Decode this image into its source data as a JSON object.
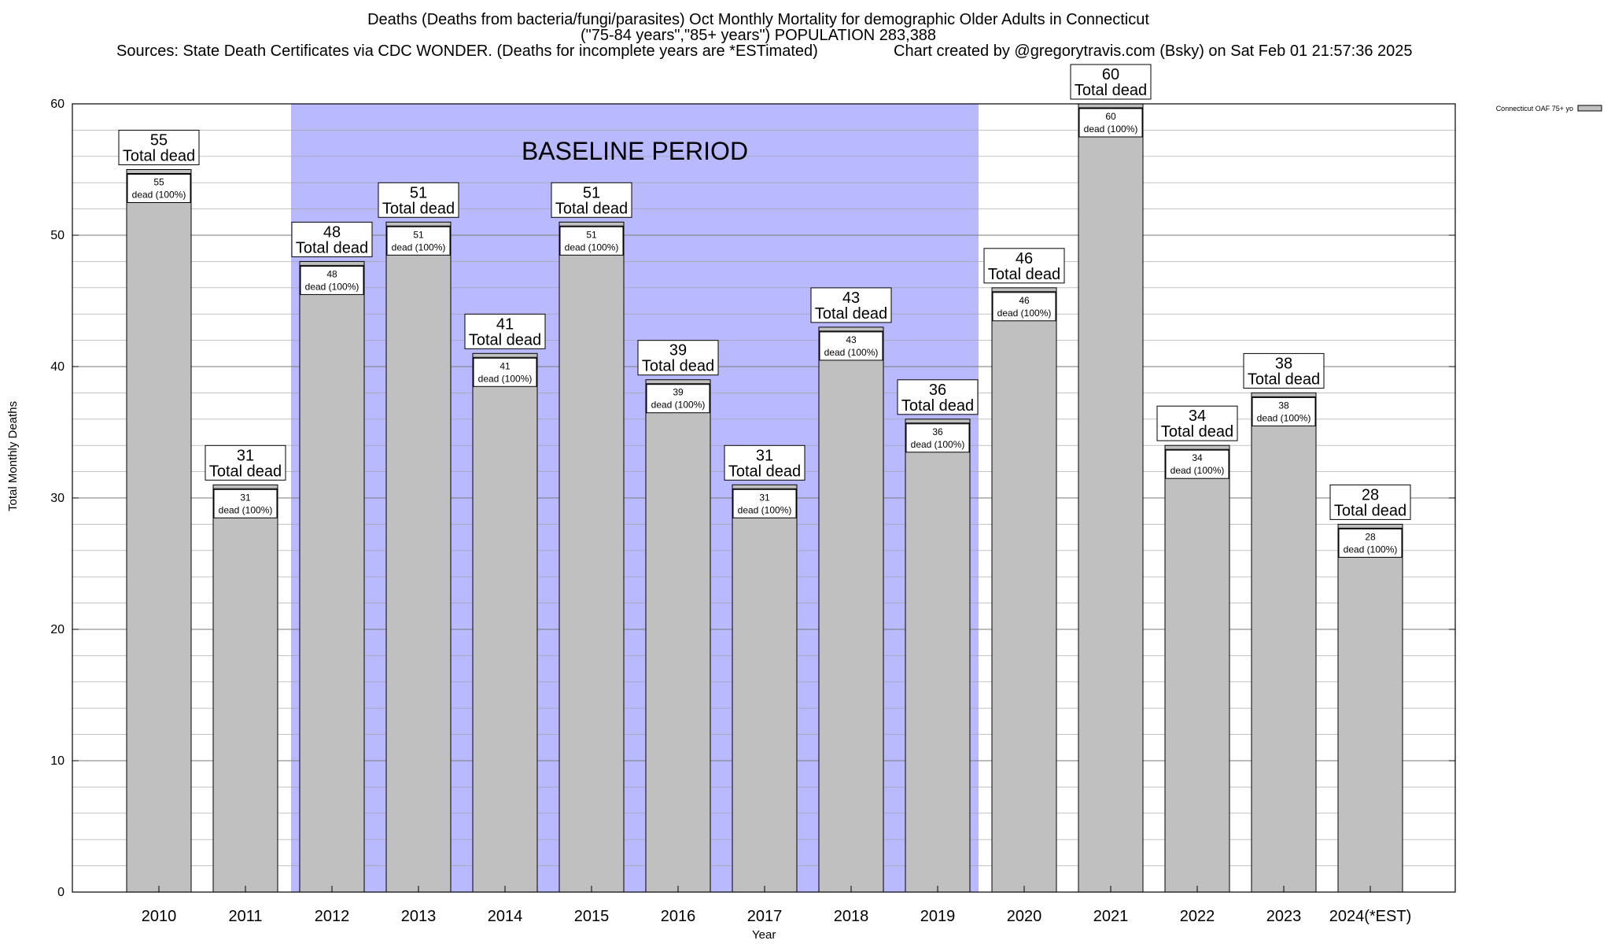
{
  "title_line1": "Deaths (Deaths from bacteria/fungi/parasites) Oct Monthly Mortality for demographic Older Adults in Connecticut",
  "title_line2": "(\"75-84 years\",\"85+ years\") POPULATION 283,388",
  "sources": "Sources: State Death Certificates via CDC WONDER. (Deaths for incomplete years are *ESTimated)",
  "credit": "Chart created by @gregorytravis.com (Bsky) on Sat Feb 01 21:57:36 2025",
  "colors": {
    "bar": "#c0c0c0",
    "baseline": "#b9b9ff",
    "axis": "#000000",
    "grid": "#a0a0a0"
  },
  "chart_data": {
    "type": "bar",
    "categories": [
      "2010",
      "2011",
      "2012",
      "2013",
      "2014",
      "2015",
      "2016",
      "2017",
      "2018",
      "2019",
      "2020",
      "2021",
      "2022",
      "2023",
      "2024(*EST)"
    ],
    "series": [
      {
        "name": "Connecticut OAF 75+ yo",
        "values": [
          55,
          31,
          48,
          51,
          41,
          51,
          39,
          31,
          43,
          36,
          46,
          60,
          34,
          38,
          28
        ]
      }
    ],
    "total_label": "Total dead",
    "inner_label": "dead (100%)",
    "xlabel": "Year",
    "ylabel": "Total Monthly Deaths",
    "ylim": [
      0,
      60
    ],
    "yticks": [
      0,
      10,
      20,
      30,
      40,
      50,
      60
    ],
    "grid": true,
    "legend_position": "top-right",
    "baseline": {
      "label": "BASELINE PERIOD",
      "start": "2012",
      "end": "2019"
    }
  }
}
